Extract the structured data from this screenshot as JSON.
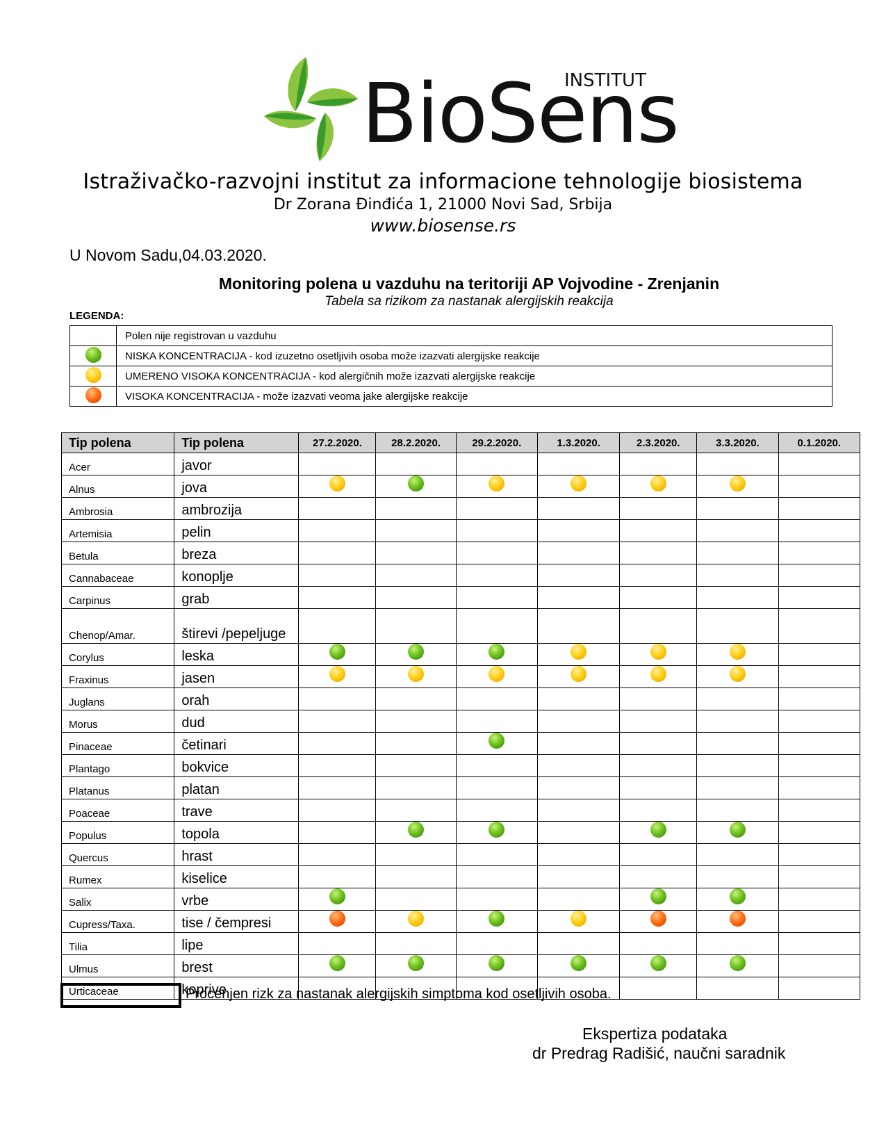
{
  "header": {
    "logo_text": "BioSens",
    "logo_badge": "INSTITUT",
    "org_name": "Istraživačko-razvojni institut za informacione tehnologije biosistema",
    "address": "Dr Zorana Đinđića 1, 21000 Novi Sad, Srbija",
    "website": "www.biosense.rs",
    "colors": {
      "leaf_light": "#8bc53f",
      "leaf_dark": "#2e8b2e",
      "logo_text": "#111111"
    }
  },
  "date_line": "U Novom Sadu,04.03.2020.",
  "title": "Monitoring polena u vazduhu na teritoriji AP Vojvodine - Zrenjanin",
  "subtitle": "Tabela sa rizikom za nastanak alergijskih reakcija",
  "legend": {
    "heading": "LEGENDA:",
    "items": [
      {
        "icon": "none",
        "text": "Polen nije registrovan u vazduhu"
      },
      {
        "icon": "green",
        "text": "NISKA KONCENTRACIJA - kod izuzetno osetljivih osoba može izazvati alergijske reakcije"
      },
      {
        "icon": "yellow",
        "text": "UMERENO VISOKA KONCENTRACIJA - kod alergičnih može izazvati alergijske reakcije"
      },
      {
        "icon": "orange",
        "text": "VISOKA KONCENTRACIJA - može izazvati veoma jake alergijske reakcije"
      }
    ]
  },
  "table": {
    "headers": [
      "Tip polena",
      "Tip polena",
      "27.2.2020.",
      "28.2.2020.",
      "29.2.2020.",
      "1.3.2020.",
      "2.3.2020.",
      "3.3.2020.",
      "0.1.2020."
    ],
    "rows": [
      {
        "latin": "Acer",
        "local": "javor",
        "risk": [
          "",
          "",
          "",
          "",
          "",
          "",
          ""
        ]
      },
      {
        "latin": "Alnus",
        "local": "jova",
        "risk": [
          "yellow",
          "green",
          "yellow",
          "yellow",
          "yellow",
          "yellow",
          ""
        ]
      },
      {
        "latin": "Ambrosia",
        "local": "ambrozija",
        "risk": [
          "",
          "",
          "",
          "",
          "",
          "",
          ""
        ]
      },
      {
        "latin": "Artemisia",
        "local": "pelin",
        "risk": [
          "",
          "",
          "",
          "",
          "",
          "",
          ""
        ]
      },
      {
        "latin": "Betula",
        "local": "breza",
        "risk": [
          "",
          "",
          "",
          "",
          "",
          "",
          ""
        ]
      },
      {
        "latin": "Cannabaceae",
        "local": "konoplje",
        "risk": [
          "",
          "",
          "",
          "",
          "",
          "",
          ""
        ]
      },
      {
        "latin": "Carpinus",
        "local": "grab",
        "risk": [
          "",
          "",
          "",
          "",
          "",
          "",
          ""
        ]
      },
      {
        "latin": "Chenop/Amar.",
        "local": "štirevi /pepeljuge",
        "tall": true,
        "risk": [
          "",
          "",
          "",
          "",
          "",
          "",
          ""
        ]
      },
      {
        "latin": "Corylus",
        "local": "leska",
        "risk": [
          "green",
          "green",
          "green",
          "yellow",
          "yellow",
          "yellow",
          ""
        ]
      },
      {
        "latin": "Fraxinus",
        "local": "jasen",
        "risk": [
          "yellow",
          "yellow",
          "yellow",
          "yellow",
          "yellow",
          "yellow",
          ""
        ]
      },
      {
        "latin": "Juglans",
        "local": "orah",
        "risk": [
          "",
          "",
          "",
          "",
          "",
          "",
          ""
        ]
      },
      {
        "latin": "Morus",
        "local": "dud",
        "risk": [
          "",
          "",
          "",
          "",
          "",
          "",
          ""
        ]
      },
      {
        "latin": "Pinaceae",
        "local": "četinari",
        "risk": [
          "",
          "",
          "green",
          "",
          "",
          "",
          ""
        ]
      },
      {
        "latin": "Plantago",
        "local": "bokvice",
        "risk": [
          "",
          "",
          "",
          "",
          "",
          "",
          ""
        ]
      },
      {
        "latin": "Platanus",
        "local": "platan",
        "risk": [
          "",
          "",
          "",
          "",
          "",
          "",
          ""
        ]
      },
      {
        "latin": "Poaceae",
        "local": "trave",
        "risk": [
          "",
          "",
          "",
          "",
          "",
          "",
          ""
        ]
      },
      {
        "latin": "Populus",
        "local": "topola",
        "risk": [
          "",
          "green",
          "green",
          "",
          "green",
          "green",
          ""
        ]
      },
      {
        "latin": "Quercus",
        "local": "hrast",
        "risk": [
          "",
          "",
          "",
          "",
          "",
          "",
          ""
        ]
      },
      {
        "latin": "Rumex",
        "local": "kiselice",
        "risk": [
          "",
          "",
          "",
          "",
          "",
          "",
          ""
        ]
      },
      {
        "latin": "Salix",
        "local": "vrbe",
        "risk": [
          "green",
          "",
          "",
          "",
          "green",
          "green",
          ""
        ]
      },
      {
        "latin": "Cupress/Taxa.",
        "local": "tise / čempresi",
        "risk": [
          "orange",
          "yellow",
          "green",
          "yellow",
          "orange",
          "orange",
          ""
        ]
      },
      {
        "latin": "Tilia",
        "local": "lipe",
        "risk": [
          "",
          "",
          "",
          "",
          "",
          "",
          ""
        ]
      },
      {
        "latin": "Ulmus",
        "local": "brest",
        "risk": [
          "green",
          "green",
          "green",
          "green",
          "green",
          "green",
          ""
        ]
      },
      {
        "latin": "Urticaceae",
        "local": "koprive",
        "risk": [
          "",
          "",
          "",
          "",
          "",
          "",
          ""
        ]
      }
    ]
  },
  "risk_note": "Procenjen rizk za nastanak alergijskih simptoma kod osetljivih osoba.",
  "expert": {
    "line1": "Ekspertiza podataka",
    "line2": "dr Predrag Radišić, naučni saradnik"
  }
}
